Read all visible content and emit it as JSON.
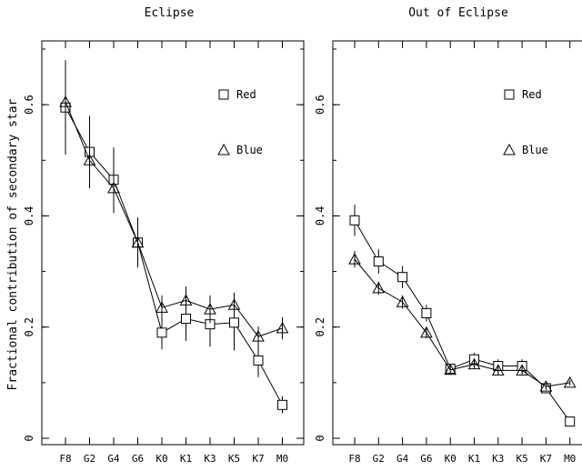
{
  "chart_data": [
    {
      "type": "line",
      "title": "Eclipse",
      "xlabel": "",
      "ylabel": "Fractional contribution of secondary star",
      "categories": [
        "F8",
        "G2",
        "G4",
        "G6",
        "K0",
        "K1",
        "K3",
        "K5",
        "K7",
        "M0"
      ],
      "ylim": [
        0,
        0.7
      ],
      "yticks": [
        0,
        0.2,
        0.4,
        0.6
      ],
      "ytick_labels": [
        "0",
        "0.2",
        "0.4",
        "0.6"
      ],
      "legend_position": "top-right",
      "series": [
        {
          "name": "Red",
          "marker": "square",
          "values": [
            0.595,
            0.515,
            0.465,
            0.352,
            0.19,
            0.215,
            0.205,
            0.208,
            0.14,
            0.06
          ],
          "errors": [
            0.085,
            0.065,
            0.058,
            0.04,
            0.03,
            0.04,
            0.04,
            0.05,
            0.03,
            0.015
          ]
        },
        {
          "name": "Blue",
          "marker": "triangle",
          "values": [
            0.605,
            0.5,
            0.45,
            0.352,
            0.235,
            0.248,
            0.232,
            0.24,
            0.183,
            0.198
          ],
          "errors": [
            0.065,
            0.05,
            0.045,
            0.045,
            0.022,
            0.025,
            0.025,
            0.022,
            0.018,
            0.02
          ]
        }
      ]
    },
    {
      "type": "line",
      "title": "Out of Eclipse",
      "xlabel": "",
      "ylabel": "",
      "categories": [
        "F8",
        "G2",
        "G4",
        "G6",
        "K0",
        "K1",
        "K3",
        "K5",
        "K7",
        "M0"
      ],
      "ylim": [
        0,
        0.7
      ],
      "yticks": [
        0,
        0.2,
        0.4,
        0.6
      ],
      "ytick_labels": [
        "0",
        "0.2",
        "0.4",
        "0.6"
      ],
      "legend_position": "top-right",
      "series": [
        {
          "name": "Red",
          "marker": "square",
          "values": [
            0.392,
            0.318,
            0.29,
            0.225,
            0.125,
            0.142,
            0.13,
            0.13,
            0.09,
            0.03
          ],
          "errors": [
            0.028,
            0.022,
            0.02,
            0.015,
            0.008,
            0.012,
            0.012,
            0.012,
            0.008,
            0.005
          ]
        },
        {
          "name": "Blue",
          "marker": "triangle",
          "values": [
            0.322,
            0.27,
            0.245,
            0.19,
            0.123,
            0.133,
            0.122,
            0.122,
            0.093,
            0.1
          ],
          "errors": [
            0.015,
            0.012,
            0.012,
            0.01,
            0.008,
            0.008,
            0.008,
            0.008,
            0.006,
            0.005
          ]
        }
      ]
    }
  ]
}
